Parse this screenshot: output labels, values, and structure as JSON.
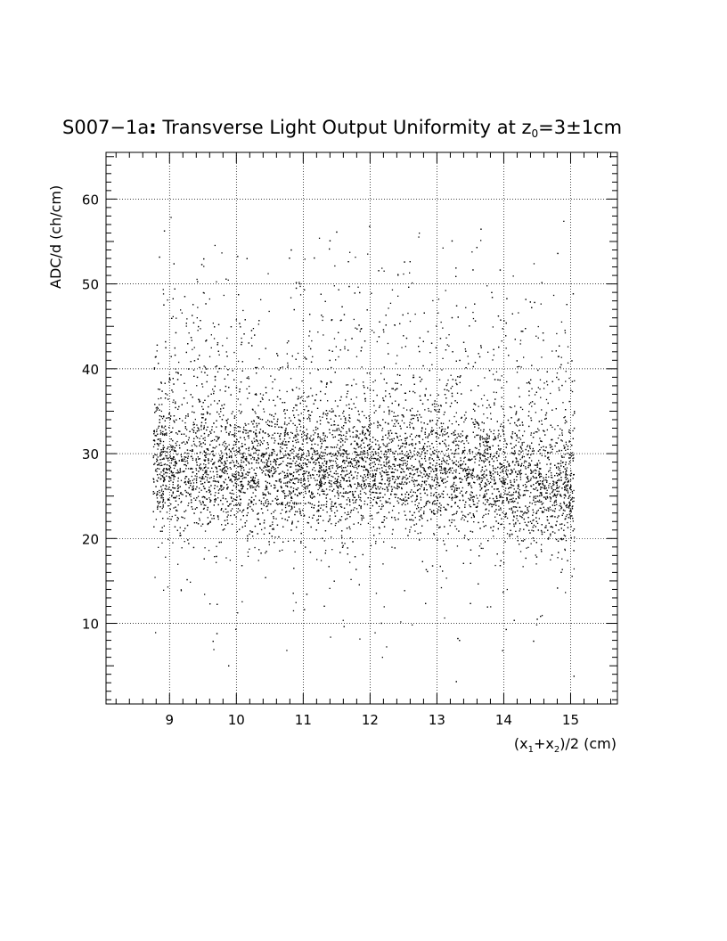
{
  "chart_data": {
    "type": "scatter",
    "title": {
      "main": "S007−1a",
      "colon": ":",
      "rest": " Transverse Light Output Uniformity at z",
      "sub": "0",
      "tail": "=3±1cm"
    },
    "xlabel": {
      "p1": "(x",
      "s1": "1",
      "p2": "+x",
      "s2": "2",
      "p3": ")/2 (cm)"
    },
    "ylabel": "ADC/d (ch/cm)",
    "xlim": [
      8.05,
      15.7
    ],
    "ylim": [
      0.5,
      65.5
    ],
    "x_ticks": [
      9,
      10,
      11,
      12,
      13,
      14,
      15
    ],
    "x_tick_labels": [
      "9",
      "10",
      "11",
      "12",
      "13",
      "14",
      "15"
    ],
    "y_ticks": [
      10,
      20,
      30,
      40,
      50,
      60
    ],
    "y_tick_labels": [
      "10",
      "20",
      "30",
      "40",
      "50",
      "60"
    ],
    "grid": true,
    "grid_style": "dotted",
    "marker": "dot",
    "color": "#000000",
    "point_count": 9000,
    "x_range": [
      8.75,
      15.05
    ],
    "band_center": [
      {
        "x": 8.8,
        "y": 28.5
      },
      {
        "x": 10.0,
        "y": 28.0
      },
      {
        "x": 11.0,
        "y": 28.0
      },
      {
        "x": 12.0,
        "y": 28.0
      },
      {
        "x": 13.0,
        "y": 28.0
      },
      {
        "x": 14.0,
        "y": 26.5
      },
      {
        "x": 15.0,
        "y": 26.0
      }
    ],
    "band_spread": 3.5
  }
}
